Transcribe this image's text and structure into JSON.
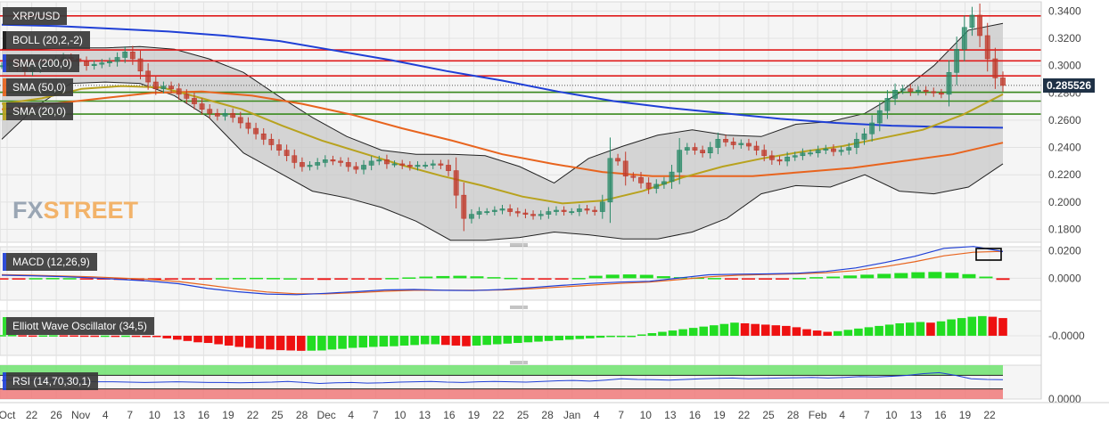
{
  "symbol": "XRP/USD",
  "logo": {
    "fx": "FX",
    "street": "STREET"
  },
  "legend": [
    {
      "label": "XRP/USD",
      "color": "#3a3a3a"
    },
    {
      "label": "BOLL (20,2,-2)",
      "color": "#111111"
    },
    {
      "label": "SMA (200,0)",
      "color": "#1f3fd6"
    },
    {
      "label": "SMA (50,0)",
      "color": "#e8641e"
    },
    {
      "label": "SMA (20,0)",
      "color": "#b8a21e"
    }
  ],
  "current_price": "0.285526",
  "colors": {
    "up": "#2a8a68",
    "down": "#c0392b",
    "sma200": "#1f3fd6",
    "sma50": "#e8641e",
    "sma20": "#b8a21e",
    "resistance": "#e01b1b",
    "support": "#3a8a1e",
    "macd_up": "#22dd22",
    "macd_down": "#ee1111"
  },
  "chart_data": [
    {
      "type": "candlestick",
      "title": "XRP/USD",
      "y_ticks": [
        "0.3400",
        "0.3200",
        "0.3000",
        "0.2800",
        "0.2600",
        "0.2400",
        "0.2200",
        "0.2000",
        "0.1800"
      ],
      "ylim": [
        0.1705,
        0.3468
      ],
      "x_ticks": [
        "Oct",
        "22",
        "26",
        "Nov",
        "4",
        "7",
        "10",
        "13",
        "16",
        "19",
        "22",
        "25",
        "28",
        "Dec",
        "4",
        "7",
        "10",
        "13",
        "16",
        "19",
        "22",
        "25",
        "28",
        "Jan",
        "4",
        "7",
        "10",
        "13",
        "16",
        "19",
        "22",
        "25",
        "28",
        "Feb",
        "4",
        "7",
        "10",
        "13",
        "16",
        "19",
        "22"
      ],
      "horizontal_levels": {
        "resistance": [
          0.3365,
          0.3115,
          0.3035,
          0.2925
        ],
        "support": [
          0.2805,
          0.274,
          0.2645
        ]
      },
      "close": [
        0.3,
        0.302,
        0.299,
        0.296,
        0.298,
        0.3,
        0.302,
        0.304,
        0.306,
        0.305,
        0.303,
        0.3,
        0.301,
        0.302,
        0.303,
        0.306,
        0.31,
        0.305,
        0.296,
        0.288,
        0.283,
        0.285,
        0.283,
        0.279,
        0.276,
        0.272,
        0.268,
        0.265,
        0.263,
        0.265,
        0.262,
        0.258,
        0.254,
        0.25,
        0.246,
        0.242,
        0.238,
        0.234,
        0.229,
        0.226,
        0.227,
        0.229,
        0.231,
        0.23,
        0.229,
        0.226,
        0.224,
        0.227,
        0.23,
        0.231,
        0.228,
        0.228,
        0.227,
        0.226,
        0.227,
        0.227,
        0.228,
        0.227,
        0.223,
        0.205,
        0.188,
        0.191,
        0.193,
        0.193,
        0.194,
        0.195,
        0.193,
        0.192,
        0.191,
        0.19,
        0.191,
        0.193,
        0.194,
        0.193,
        0.193,
        0.195,
        0.194,
        0.193,
        0.2,
        0.232,
        0.23,
        0.219,
        0.218,
        0.214,
        0.21,
        0.213,
        0.215,
        0.222,
        0.238,
        0.24,
        0.238,
        0.236,
        0.24,
        0.246,
        0.244,
        0.242,
        0.243,
        0.241,
        0.238,
        0.234,
        0.231,
        0.23,
        0.233,
        0.234,
        0.236,
        0.236,
        0.238,
        0.239,
        0.237,
        0.238,
        0.24,
        0.246,
        0.25,
        0.258,
        0.267,
        0.276,
        0.282,
        0.283,
        0.281,
        0.282,
        0.281,
        0.28,
        0.279,
        0.295,
        0.312,
        0.328,
        0.337,
        0.322,
        0.305,
        0.291,
        0.2855
      ],
      "bollinger": {
        "upper": [
          0.312,
          0.312,
          0.313,
          0.313,
          0.314,
          0.312,
          0.305,
          0.295,
          0.278,
          0.262,
          0.248,
          0.238,
          0.235,
          0.235,
          0.234,
          0.226,
          0.214,
          0.232,
          0.241,
          0.249,
          0.253,
          0.249,
          0.248,
          0.257,
          0.259,
          0.265,
          0.28,
          0.3,
          0.326,
          0.331
        ],
        "lower": [
          0.246,
          0.27,
          0.287,
          0.288,
          0.287,
          0.278,
          0.262,
          0.236,
          0.222,
          0.208,
          0.203,
          0.196,
          0.186,
          0.172,
          0.172,
          0.174,
          0.178,
          0.176,
          0.173,
          0.173,
          0.178,
          0.188,
          0.206,
          0.212,
          0.211,
          0.22,
          0.208,
          0.206,
          0.211,
          0.228
        ]
      },
      "sma200": [
        0.33,
        0.329,
        0.327,
        0.325,
        0.322,
        0.318,
        0.311,
        0.304,
        0.296,
        0.289,
        0.281,
        0.274,
        0.269,
        0.265,
        0.261,
        0.258,
        0.256,
        0.255,
        0.2545
      ],
      "sma50": [
        0.268,
        0.272,
        0.276,
        0.28,
        0.281,
        0.278,
        0.272,
        0.264,
        0.254,
        0.245,
        0.235,
        0.228,
        0.222,
        0.219,
        0.219,
        0.219,
        0.222,
        0.225,
        0.23,
        0.235,
        0.2435
      ],
      "sma20": [
        0.272,
        0.276,
        0.283,
        0.285,
        0.284,
        0.276,
        0.268,
        0.256,
        0.245,
        0.236,
        0.227,
        0.219,
        0.212,
        0.204,
        0.199,
        0.201,
        0.208,
        0.218,
        0.226,
        0.232,
        0.237,
        0.241,
        0.247,
        0.253,
        0.264,
        0.279
      ],
      "last_price_label": "0.285526"
    },
    {
      "type": "bar",
      "title": "MACD (12,26,9)",
      "y_ticks": [
        "0.0200",
        "0.0000"
      ],
      "ylim": [
        -0.016,
        0.023
      ],
      "histogram": [
        -0.0003,
        -0.0002,
        0.0001,
        0.0002,
        0.0001,
        -0.0002,
        -0.0008,
        -0.0012,
        -0.0014,
        -0.0012,
        -0.001,
        -0.0008,
        -0.0003,
        0.0001,
        0.0002,
        0.0003,
        0.0002,
        0.0,
        -0.0008,
        -0.0012,
        -0.001,
        -0.0006,
        -0.0002,
        0.0002,
        0.0006,
        0.0012,
        0.0016,
        0.0018,
        0.0014,
        0.0008,
        0.0003,
        -0.0003,
        -0.0008,
        -0.0006,
        0.0002,
        0.0018,
        0.0026,
        0.0028,
        0.0025,
        0.0015,
        0.0008,
        0.0005,
        0.0002,
        -0.0004,
        -0.0008,
        -0.001,
        -0.0006,
        0.0002,
        0.0008,
        0.0012,
        0.002,
        0.0026,
        0.0032,
        0.0038,
        0.0044,
        0.0046,
        0.004,
        0.003,
        0.0012,
        -0.0012
      ],
      "macd_line": [
        0.0022,
        0.0018,
        0.0012,
        0.0004,
        -0.0008,
        -0.002,
        -0.004,
        -0.0075,
        -0.0098,
        -0.0115,
        -0.012,
        -0.011,
        -0.0098,
        -0.0085,
        -0.0082,
        -0.0088,
        -0.009,
        -0.0082,
        -0.0068,
        -0.0052,
        -0.0038,
        -0.0028,
        -0.0022,
        0.0002,
        0.0025,
        0.003,
        0.0032,
        0.0036,
        0.005,
        0.0075,
        0.0115,
        0.016,
        0.0218,
        0.0232,
        0.0195
      ],
      "signal_line": [
        0.0026,
        0.0022,
        0.0017,
        0.0011,
        0.0002,
        -0.0008,
        -0.0024,
        -0.005,
        -0.0078,
        -0.01,
        -0.0113,
        -0.0114,
        -0.0106,
        -0.0095,
        -0.0088,
        -0.0087,
        -0.0088,
        -0.0085,
        -0.0076,
        -0.0064,
        -0.005,
        -0.0038,
        -0.0028,
        -0.001,
        0.001,
        0.0022,
        0.0028,
        0.0032,
        0.004,
        0.0056,
        0.0085,
        0.012,
        0.0164,
        0.019,
        0.0196
      ]
    },
    {
      "type": "bar",
      "title": "Elliott Wave Oscillator (34,5)",
      "y_ticks": [
        "-0.0000"
      ],
      "ylim": [
        -0.03,
        0.038
      ],
      "values": [
        0.001,
        0.0012,
        0.0008,
        0.0005,
        0.0006,
        0.0008,
        0.0007,
        0.0006,
        0.0004,
        0.0003,
        0.0003,
        0.0002,
        0.0003,
        0.0002,
        -0.0005,
        -0.002,
        -0.004,
        -0.006,
        -0.008,
        -0.01,
        -0.011,
        -0.013,
        -0.015,
        -0.017,
        -0.0185,
        -0.02,
        -0.021,
        -0.022,
        -0.0225,
        -0.023,
        -0.0228,
        -0.0225,
        -0.021,
        -0.02,
        -0.0185,
        -0.018,
        -0.017,
        -0.0165,
        -0.016,
        -0.015,
        -0.0142,
        -0.013,
        -0.013,
        -0.014,
        -0.015,
        -0.016,
        -0.015,
        -0.014,
        -0.013,
        -0.012,
        -0.011,
        -0.01,
        -0.009,
        -0.008,
        -0.007,
        -0.006,
        -0.005,
        -0.004,
        -0.003,
        -0.002,
        -0.001,
        0.0,
        0.002,
        0.004,
        0.006,
        0.008,
        0.01,
        0.012,
        0.014,
        0.016,
        0.018,
        0.02,
        0.019,
        0.018,
        0.017,
        0.016,
        0.015,
        0.013,
        0.01,
        0.008,
        0.006,
        0.007,
        0.009,
        0.011,
        0.013,
        0.015,
        0.017,
        0.019,
        0.02,
        0.021,
        0.02,
        0.022,
        0.025,
        0.027,
        0.029,
        0.03,
        0.029,
        0.027
      ]
    },
    {
      "type": "line",
      "title": "RSI (14,70,30,1)",
      "y_ticks": [
        "0.0000"
      ],
      "ylim": [
        0,
        100
      ],
      "overbought": 70,
      "oversold": 30,
      "values": [
        55,
        56,
        56,
        55,
        54,
        52,
        51,
        51,
        50,
        49,
        50,
        51,
        50,
        49,
        49,
        48,
        49,
        50,
        52,
        49,
        46,
        48,
        49,
        47,
        48,
        50,
        51,
        52,
        50,
        49,
        51,
        52,
        51,
        50,
        52,
        54,
        55,
        53,
        56,
        60,
        58,
        57,
        56,
        58,
        60,
        61,
        62,
        60,
        61,
        62,
        63,
        64,
        62,
        64,
        66,
        65,
        67,
        70,
        75,
        78,
        70,
        60,
        58,
        57
      ]
    }
  ]
}
